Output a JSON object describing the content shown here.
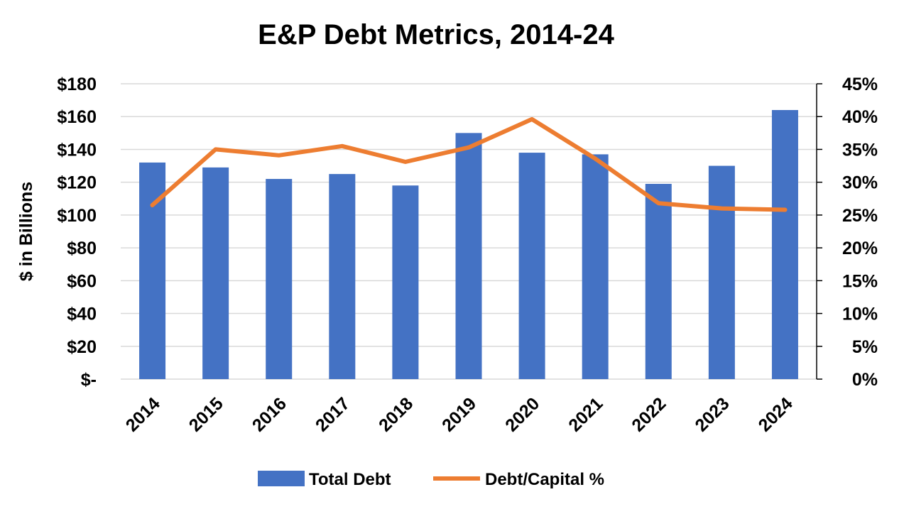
{
  "chart_data": {
    "type": "bar",
    "title": "E&P Debt Metrics, 2014-24",
    "categories": [
      "2014",
      "2015",
      "2016",
      "2017",
      "2018",
      "2019",
      "2020",
      "2021",
      "2022",
      "2023",
      "2024"
    ],
    "ylabel": "$ in Billions",
    "ylim": [
      0,
      180
    ],
    "y_ticks": [
      0,
      20,
      40,
      60,
      80,
      100,
      120,
      140,
      160,
      180
    ],
    "y_tick_labels": [
      "$-",
      "$20",
      "$40",
      "$60",
      "$80",
      "$100",
      "$120",
      "$140",
      "$160",
      "$180"
    ],
    "y2lim": [
      0,
      45
    ],
    "y2_ticks": [
      0,
      5,
      10,
      15,
      20,
      25,
      30,
      35,
      40,
      45
    ],
    "y2_tick_labels": [
      "0%",
      "5%",
      "10%",
      "15%",
      "20%",
      "25%",
      "30%",
      "35%",
      "40%",
      "45%"
    ],
    "grid": true,
    "legend_position": "bottom",
    "series": [
      {
        "name": "Total Debt",
        "type": "bar",
        "axis": "left",
        "color": "#4472C4",
        "values": [
          132,
          129,
          122,
          125,
          118,
          150,
          138,
          137,
          119,
          130,
          164
        ]
      },
      {
        "name": "Debt/Capital %",
        "type": "line",
        "axis": "right",
        "color": "#ED7D31",
        "values": [
          26.5,
          35.0,
          34.1,
          35.5,
          33.1,
          35.3,
          39.6,
          33.6,
          26.8,
          26.0,
          25.8
        ]
      }
    ]
  }
}
